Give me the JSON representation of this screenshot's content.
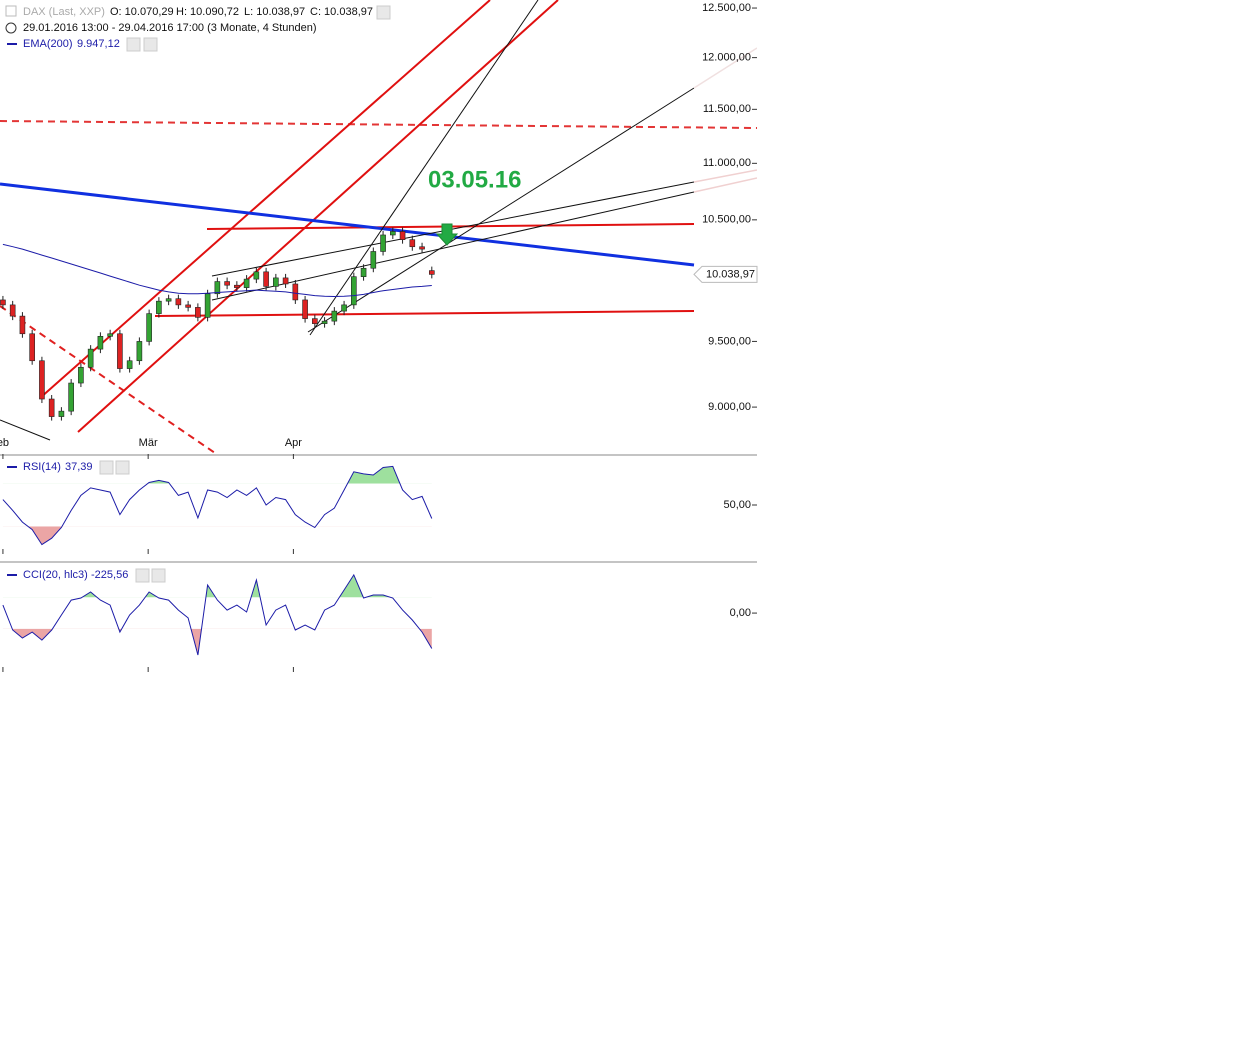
{
  "chart_data": [
    {
      "type": "candlestick",
      "title": "DAX (Last, XXP)",
      "ohlc_labels": [
        "O: 10.070,29",
        "H: 10.090,72",
        "L: 10.038,97",
        "C: 10.038,97"
      ],
      "subtitle": "29.01.2016 13:00 - 29.04.2016 17:00 (3 Monate, 4 Stunden)",
      "annotation": "03.05.16",
      "last_label": "10.038,97",
      "x": [
        0,
        1,
        2,
        3,
        4,
        5,
        6,
        7,
        8,
        9,
        10,
        11,
        12,
        13,
        14,
        15,
        16,
        17,
        18,
        19,
        20,
        21,
        22,
        23,
        24,
        25,
        26,
        27,
        28,
        29,
        30,
        31,
        32,
        33,
        34,
        35,
        36,
        37,
        38,
        39,
        40,
        41,
        42,
        43,
        44
      ],
      "xlim": [
        -0.3,
        70.9
      ],
      "xticks": [
        {
          "value": 0,
          "label": "eb"
        },
        {
          "value": 14.9,
          "label": "Mär"
        },
        {
          "value": 29.8,
          "label": "Apr"
        }
      ],
      "ylim": [
        8652,
        12583
      ],
      "log_scale": true,
      "yticks": [
        {
          "value": 9000,
          "label": "9.000,00"
        },
        {
          "value": 9500,
          "label": "9.500,00"
        },
        {
          "value": 10500,
          "label": "10.500,00"
        },
        {
          "value": 11000,
          "label": "11.000,00"
        },
        {
          "value": 11500,
          "label": "11.500,00"
        },
        {
          "value": 12000,
          "label": "12.000,00"
        },
        {
          "value": 12500,
          "label": "12.500,00"
        }
      ],
      "up_color": "#33a333",
      "down_color": "#dd2222",
      "open": [
        9830,
        9790,
        9700,
        9560,
        9350,
        9060,
        8930,
        8970,
        9180,
        9300,
        9440,
        9540,
        9560,
        9290,
        9350,
        9500,
        9720,
        9820,
        9840,
        9790,
        9770,
        9690,
        9880,
        9980,
        9950,
        9930,
        10000,
        10060,
        9940,
        10010,
        9960,
        9830,
        9680,
        9640,
        9660,
        9740,
        9790,
        10020,
        10090,
        10230,
        10370,
        10400,
        10330,
        10270,
        10070.29
      ],
      "close": [
        9790,
        9700,
        9560,
        9350,
        9060,
        8930,
        8970,
        9180,
        9300,
        9440,
        9540,
        9560,
        9290,
        9350,
        9500,
        9720,
        9820,
        9840,
        9790,
        9770,
        9690,
        9880,
        9980,
        9950,
        9930,
        10000,
        10060,
        9940,
        10010,
        9960,
        9830,
        9680,
        9640,
        9660,
        9740,
        9790,
        10020,
        10090,
        10230,
        10370,
        10400,
        10330,
        10270,
        10250,
        10038.97
      ],
      "series": [
        {
          "name": "EMA(200)",
          "value_label": "9.947,12",
          "color": "#1c1ca8",
          "values": [
            10290,
            10270,
            10250,
            10225,
            10200,
            10175,
            10150,
            10125,
            10100,
            10075,
            10050,
            10025,
            10000,
            9975,
            9950,
            9930,
            9910,
            9895,
            9885,
            9880,
            9880,
            9885,
            9890,
            9895,
            9900,
            9905,
            9910,
            9905,
            9900,
            9895,
            9885,
            9875,
            9865,
            9860,
            9858,
            9860,
            9865,
            9875,
            9890,
            9905,
            9915,
            9925,
            9935,
            9940,
            9947.12
          ]
        }
      ]
    },
    {
      "type": "line",
      "ylim": [
        8,
        92
      ],
      "yticks": [
        {
          "value": 50,
          "label": "50,00"
        }
      ],
      "bands": [
        30,
        70
      ],
      "series": [
        {
          "name": "RSI(14)",
          "value_label": "37,39",
          "color": "#1c1ca8",
          "values": [
            55,
            45,
            34,
            27,
            13,
            19,
            29,
            45,
            59,
            66,
            64,
            62,
            41,
            55,
            64,
            71,
            73,
            71,
            59,
            62,
            38,
            64,
            62,
            57,
            64,
            59,
            66,
            50,
            57,
            55,
            41,
            34,
            29,
            41,
            47,
            64,
            81,
            79,
            78,
            85,
            86,
            64,
            55,
            58,
            37.39
          ]
        }
      ]
    },
    {
      "type": "line",
      "ylim": [
        -350,
        300
      ],
      "yticks": [
        {
          "value": 0,
          "label": "0,00"
        }
      ],
      "bands": [
        -100,
        100
      ],
      "series": [
        {
          "name": "CCI(20, hlc3)",
          "value_label": "-225,56",
          "color": "#1c1ca8",
          "values": [
            51,
            -108,
            -159,
            -121,
            -172,
            -108,
            -12,
            83,
            96,
            134,
            83,
            51,
            -121,
            -12,
            51,
            134,
            96,
            83,
            19,
            -31,
            -267,
            179,
            83,
            19,
            51,
            7,
            211,
            -76,
            19,
            51,
            -108,
            -76,
            -108,
            19,
            51,
            147,
            243,
            96,
            115,
            115,
            96,
            19,
            -44,
            -121,
            -225.56
          ]
        }
      ]
    }
  ]
}
